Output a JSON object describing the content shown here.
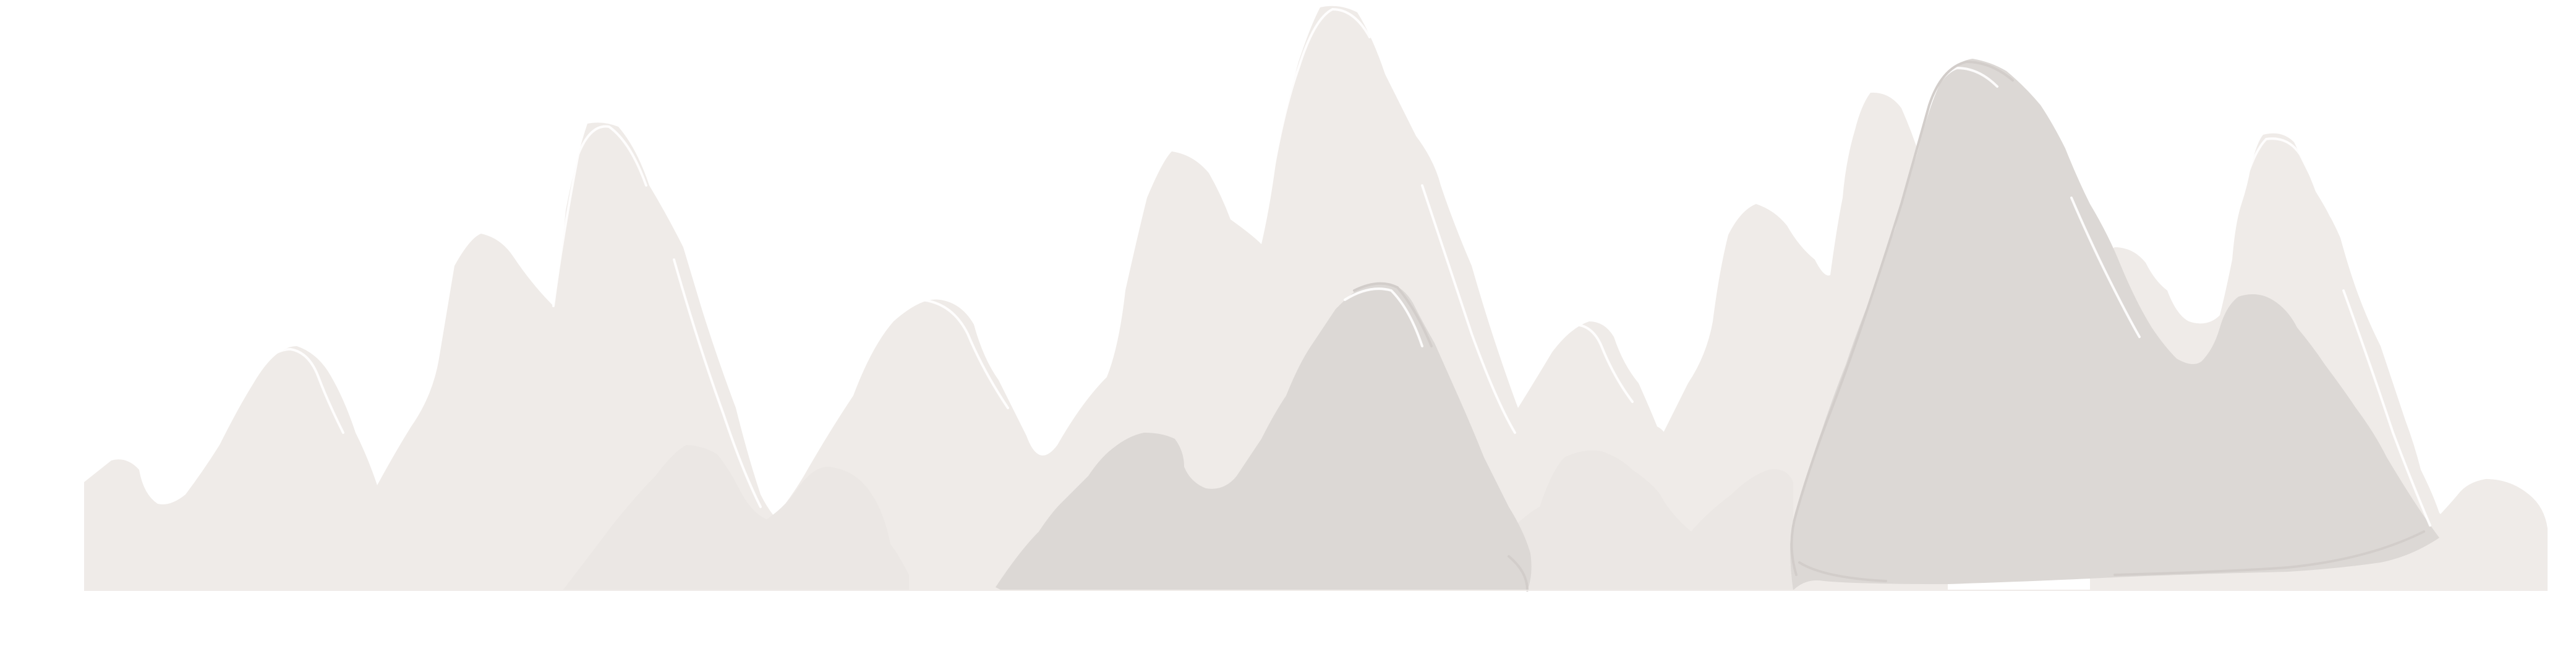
{
  "illustration": {
    "kind": "ink-wash mountain range",
    "layer_colors": {
      "back": "#efebe8",
      "middle": "#ebe7e4",
      "front": "#dcd8d5",
      "stroke": "#ffffff",
      "stroke_dark": "#d2cdca",
      "background": "#ffffff"
    }
  }
}
